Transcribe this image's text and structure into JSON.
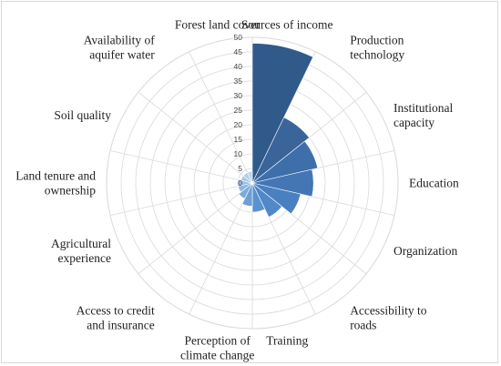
{
  "chart_data": {
    "type": "polar-area",
    "title": "",
    "r_ticks": [
      0,
      5,
      10,
      15,
      20,
      25,
      30,
      35,
      40,
      45,
      50
    ],
    "r_max": 50,
    "grid": true,
    "legend": "none",
    "categories": [
      {
        "label_lines": [
          "Sources of income"
        ],
        "value": 48,
        "color": "#2f5a8a"
      },
      {
        "label_lines": [
          "Production",
          "technology"
        ],
        "value": 25,
        "color": "#3a659b"
      },
      {
        "label_lines": [
          "Institutional",
          "capacity"
        ],
        "value": 23,
        "color": "#3e6fab"
      },
      {
        "label_lines": [
          "Education"
        ],
        "value": 21,
        "color": "#4476b6"
      },
      {
        "label_lines": [
          "Organization"
        ],
        "value": 17,
        "color": "#4a80c0"
      },
      {
        "label_lines": [
          "Accessibility to",
          "roads"
        ],
        "value": 13,
        "color": "#5088c9"
      },
      {
        "label_lines": [
          "Training"
        ],
        "value": 10,
        "color": "#5a92d0"
      },
      {
        "label_lines": [
          "Perception of",
          "climate change"
        ],
        "value": 8,
        "color": "#6b9fd6"
      },
      {
        "label_lines": [
          "Access to credit",
          "and insurance"
        ],
        "value": 6,
        "color": "#7caad9"
      },
      {
        "label_lines": [
          "Agricultural",
          "experience"
        ],
        "value": 5,
        "color": "#8cb5de"
      },
      {
        "label_lines": [
          "Land tenure and",
          "ownership"
        ],
        "value": 5,
        "color": "#9bbfe3"
      },
      {
        "label_lines": [
          "Soil quality"
        ],
        "value": 4,
        "color": "#a7c7e7"
      },
      {
        "label_lines": [
          "Availability of",
          "aquifer water"
        ],
        "value": 4,
        "color": "#b2cdea"
      },
      {
        "label_lines": [
          "Forest land cover"
        ],
        "value": 4,
        "color": "#bdd4ec"
      }
    ]
  }
}
